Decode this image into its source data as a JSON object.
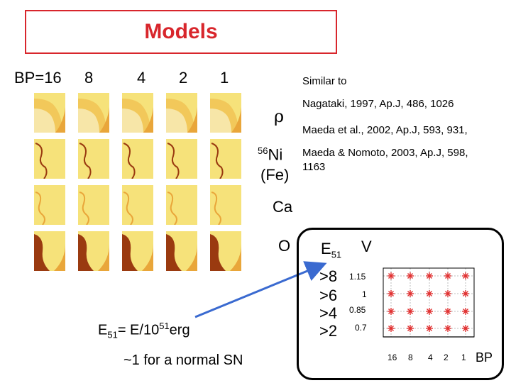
{
  "header": {
    "title": "Models"
  },
  "bp_labels": [
    "BP=16",
    "8",
    "4",
    "2",
    "1"
  ],
  "similar_to": "Similar to",
  "references": [
    "Nagataki, 1997, Ap.J, 486, 1026",
    "Maeda et al., 2002, Ap.J, 593, 931,",
    "Maeda & Nomoto, 2003, Ap.J, 598,",
    "1163"
  ],
  "row_labels": {
    "rho": "ρ",
    "ni_sup": "56",
    "ni": "Ni",
    "fe": "(Fe)",
    "ca": "Ca",
    "o": "O"
  },
  "energy_def": {
    "prefix": "E",
    "sub": "51",
    "mid": "= E/10",
    "sup": "51",
    "suffix": "erg"
  },
  "normal_sn": "~1 for a normal SN",
  "param_box": {
    "e_label": "E",
    "e_sub": "51",
    "v_label": "V",
    "e_thresholds": [
      ">8",
      ">6",
      ">4",
      ">2"
    ],
    "v_ticks": [
      "1.15",
      "1",
      "0.85",
      "0.7"
    ],
    "bp_ticks": [
      "16",
      "8",
      "4",
      "2",
      "1"
    ],
    "bp_axis_label": "BP",
    "marker_color": "#e03030"
  },
  "colors": {
    "accent": "#d8262c",
    "panel_light": "#f6e27a",
    "panel_mid": "#e9a63a",
    "panel_dark": "#9a3a10"
  }
}
